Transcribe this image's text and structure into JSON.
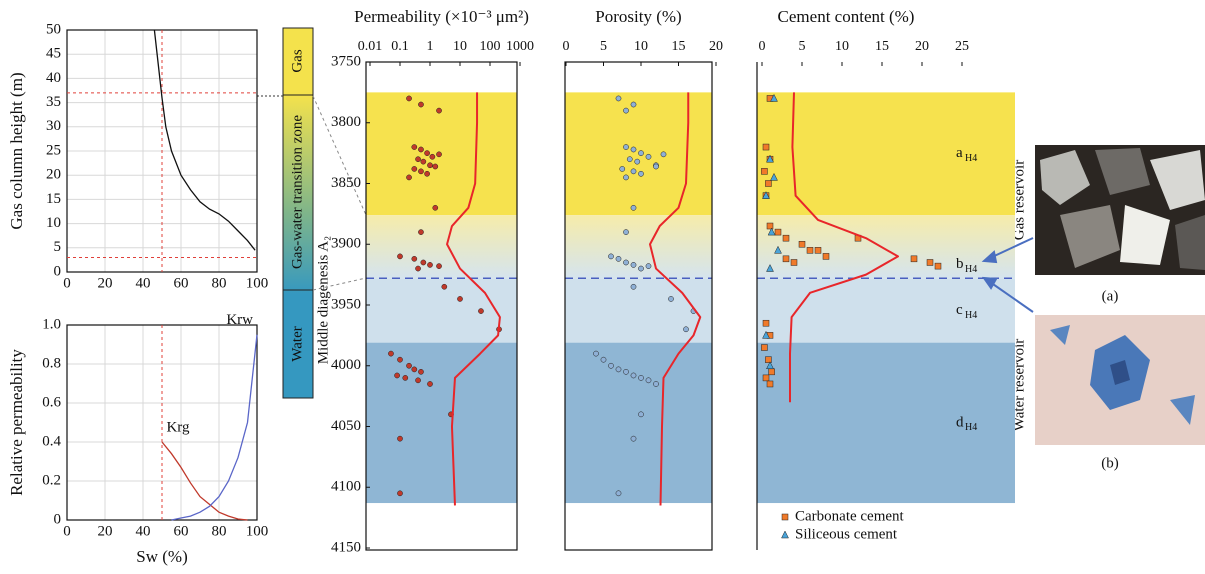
{
  "chart_data": [
    {
      "type": "line",
      "ylabel": "Gas column height (m)",
      "xlim": [
        0,
        100
      ],
      "xticks": [
        0,
        20,
        40,
        60,
        80,
        100
      ],
      "ylim": [
        0,
        50
      ],
      "yticks": [
        0,
        5,
        10,
        15,
        20,
        25,
        30,
        35,
        40,
        45,
        50
      ],
      "grid": true,
      "series": [
        {
          "color": "#111111",
          "x": [
            46,
            48,
            50,
            52,
            55,
            60,
            65,
            70,
            75,
            80,
            85,
            90,
            95,
            99
          ],
          "values": [
            50,
            43,
            36,
            30,
            25,
            20,
            17,
            14.5,
            13,
            12,
            10.5,
            8.5,
            6.5,
            4.5
          ]
        }
      ],
      "ref_lines": {
        "x": [
          50
        ],
        "y": [
          37,
          3
        ],
        "color": "#e0403a"
      }
    },
    {
      "type": "line",
      "ylabel": "Relative permeability",
      "xlabel": "Sw (%)",
      "xlim": [
        0,
        100
      ],
      "xticks": [
        0,
        20,
        40,
        60,
        80,
        100
      ],
      "ylim": [
        0,
        1
      ],
      "yticks": [
        0,
        0.2,
        0.4,
        0.6,
        0.8,
        {
          "value": 1,
          "label": "1.0"
        }
      ],
      "grid": true,
      "series": [
        {
          "name": "Krg",
          "color": "#c0392b",
          "x": [
            50,
            55,
            60,
            65,
            70,
            75,
            80,
            85,
            90,
            95
          ],
          "values": [
            0.4,
            0.34,
            0.27,
            0.19,
            0.12,
            0.08,
            0.04,
            0.02,
            0.005,
            0
          ]
        },
        {
          "name": "Krw",
          "color": "#5a66c8",
          "x": [
            55,
            60,
            65,
            70,
            75,
            80,
            85,
            90,
            95,
            100
          ],
          "values": [
            0,
            0.01,
            0.02,
            0.04,
            0.07,
            0.12,
            0.2,
            0.32,
            0.5,
            0.95
          ]
        }
      ],
      "ref_lines": {
        "x": [
          50
        ],
        "y": [],
        "color": "#e0403a"
      }
    },
    {
      "type": "depth_scatter",
      "title": "Permeability (×10⁻³ μm²)",
      "xscale": "log",
      "xlim": [
        0.01,
        1000
      ],
      "xticks": [
        0.01,
        0.1,
        1,
        10,
        100,
        1000
      ],
      "ylim": [
        3750,
        4150
      ],
      "yticks": [
        3750,
        3800,
        3850,
        3900,
        3950,
        4000,
        4050,
        4100,
        4150
      ],
      "series": [
        {
          "marker": "circle",
          "color": "#c0392b",
          "depth": [
            3780,
            3785,
            3790,
            3820,
            3822,
            3825,
            3828,
            3830,
            3832,
            3835,
            3838,
            3840,
            3842,
            3845,
            3826,
            3836,
            3870,
            3890,
            3910,
            3912,
            3915,
            3917,
            3918,
            3920,
            3935,
            3945,
            3955,
            3970,
            3990,
            3995,
            4000,
            4003,
            4005,
            4008,
            4010,
            4012,
            4015,
            4040,
            4060,
            4105
          ],
          "values": [
            0.2,
            0.5,
            2,
            0.3,
            0.5,
            0.8,
            1.2,
            0.4,
            0.6,
            1,
            0.3,
            0.5,
            0.8,
            0.2,
            2,
            1.5,
            1.5,
            0.5,
            0.1,
            0.3,
            0.6,
            1,
            2,
            0.4,
            3,
            10,
            50,
            200,
            0.05,
            0.1,
            0.2,
            0.3,
            0.5,
            0.08,
            0.15,
            0.4,
            1,
            5,
            0.1,
            0.1
          ]
        }
      ],
      "trend": {
        "color": "#e8262a",
        "depth": [
          3775,
          3800,
          3850,
          3870,
          3885,
          3900,
          3920,
          3940,
          3960,
          3975,
          3990,
          4010,
          4050,
          4115
        ],
        "values": [
          37,
          37,
          32,
          19,
          5.4,
          3.7,
          10,
          68,
          214,
          186,
          47,
          6.8,
          5.4,
          6.8
        ]
      }
    },
    {
      "type": "depth_scatter",
      "title": "Porosity (%)",
      "xlim": [
        0,
        20
      ],
      "xticks": [
        0,
        5,
        10,
        15,
        20
      ],
      "ylim": [
        3750,
        4150
      ],
      "series": [
        {
          "marker": "circle",
          "color": "#8fb0d6",
          "depth": [
            3780,
            3785,
            3790,
            3820,
            3822,
            3825,
            3828,
            3830,
            3832,
            3835,
            3838,
            3840,
            3842,
            3845,
            3826,
            3836,
            3870,
            3890,
            3910,
            3912,
            3915,
            3917,
            3918,
            3920,
            3935,
            3945,
            3955,
            3970,
            3990,
            3995,
            4000,
            4003,
            4005,
            4008,
            4010,
            4012,
            4015,
            4040,
            4060,
            4105
          ],
          "values": [
            7,
            9,
            8,
            8,
            9,
            10,
            11,
            8.5,
            9.5,
            12,
            7.5,
            9,
            10,
            8,
            13,
            12,
            9,
            8,
            6,
            7,
            8,
            9,
            11,
            10,
            9,
            14,
            17,
            16,
            4,
            5,
            6,
            7,
            8,
            9,
            10,
            11,
            12,
            10,
            9,
            7
          ]
        }
      ],
      "trend": {
        "color": "#e8262a",
        "depth": [
          3775,
          3800,
          3850,
          3870,
          3885,
          3900,
          3920,
          3940,
          3960,
          3975,
          3990,
          4010,
          4050,
          4115
        ],
        "values": [
          16.3,
          16.3,
          16,
          15,
          12.5,
          11.2,
          12,
          15.5,
          17.9,
          17,
          15,
          13,
          12.8,
          12.6
        ]
      }
    },
    {
      "type": "depth_scatter",
      "title": "Cement content (%)",
      "xlim": [
        0,
        25
      ],
      "xticks": [
        0,
        5,
        10,
        15,
        20,
        25
      ],
      "ylim": [
        3750,
        4150
      ],
      "legend": "lower-left",
      "series": [
        {
          "name": "Carbonate cement",
          "marker": "square",
          "color": "#f07a2a",
          "depth": [
            3820,
            3830,
            3840,
            3850,
            3860,
            3885,
            3890,
            3895,
            3900,
            3905,
            3910,
            3912,
            3915,
            3918,
            3895,
            3905,
            3912,
            3915,
            3965,
            3975,
            3985,
            3995,
            4005,
            4010,
            4015,
            3780
          ],
          "values": [
            0.5,
            1,
            0.3,
            0.8,
            0.5,
            1,
            2,
            3,
            5,
            6,
            8,
            19,
            21,
            22,
            12,
            7,
            3,
            4,
            0.5,
            1,
            0.3,
            0.8,
            1.2,
            0.5,
            1,
            1
          ]
        },
        {
          "name": "Siliceous cement",
          "marker": "triangle",
          "color": "#4aa3d8",
          "depth": [
            3780,
            3830,
            3845,
            3860,
            3890,
            3905,
            3920,
            3975,
            4000
          ],
          "values": [
            1.5,
            1,
            1.5,
            0.5,
            1.2,
            2,
            1,
            0.5,
            1
          ]
        }
      ],
      "trend": {
        "color": "#e8262a",
        "depth": [
          3775,
          3820,
          3860,
          3880,
          3895,
          3910,
          3925,
          3940,
          3960,
          3990,
          4030
        ],
        "values": [
          4,
          3.8,
          4.2,
          7,
          13,
          17,
          13,
          6,
          3.7,
          3.5,
          3.5
        ]
      }
    }
  ],
  "column": {
    "labels": [
      "Gas",
      "Gas-water transition zone",
      "Water"
    ],
    "title": "Middle diagenesis A₂"
  },
  "zones": {
    "bands": [
      {
        "label": "a",
        "sub": "H4",
        "top": 3775,
        "bottom": 3876,
        "color": "#f6e24e",
        "color_bottom": "#f6e24e"
      },
      {
        "label": "b",
        "sub": "H4",
        "top": 3876,
        "bottom": 3928,
        "color": "#f6ecaa",
        "color_bottom": "#d5e4ee"
      },
      {
        "label": "c",
        "sub": "H4",
        "top": 3928,
        "bottom": 3981,
        "color": "#cfe0ec",
        "color_bottom": "#cfe0ec"
      },
      {
        "label": "d",
        "sub": "H4",
        "top": 3981,
        "bottom": 4113,
        "color": "#8fb6d4",
        "color_bottom": "#8fb6d4"
      }
    ],
    "boundary": 3928,
    "boundary_color": "#4a5fc0"
  },
  "photos": {
    "labels": [
      "(a)",
      "(b)"
    ],
    "reservoirs": [
      "Gas reservoir",
      "Water reservoir"
    ]
  }
}
